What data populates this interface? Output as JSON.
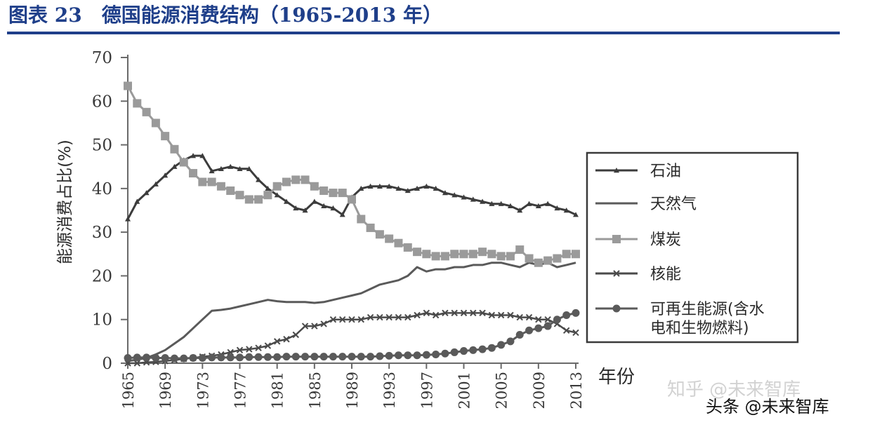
{
  "figure": {
    "title": "图表 23　德国能源消费结构（1965-2013 年）"
  },
  "watermark": {
    "faint": "知乎 @未来智库",
    "main": "头条 @未来智库"
  },
  "chart_data": {
    "type": "line",
    "ylabel": "能源消费占比(%)",
    "xlabel": "年份",
    "ylim": [
      0,
      70
    ],
    "yticks": [
      0,
      10,
      20,
      30,
      40,
      50,
      60,
      70
    ],
    "xlim": [
      1965,
      2013
    ],
    "xticks": [
      1965,
      1969,
      1973,
      1977,
      1981,
      1985,
      1989,
      1993,
      1997,
      2001,
      2005,
      2009,
      2013
    ],
    "grid": false,
    "legend_position": "right",
    "x": [
      1965,
      1966,
      1967,
      1968,
      1969,
      1970,
      1971,
      1972,
      1973,
      1974,
      1975,
      1976,
      1977,
      1978,
      1979,
      1980,
      1981,
      1982,
      1983,
      1984,
      1985,
      1986,
      1987,
      1988,
      1989,
      1990,
      1991,
      1992,
      1993,
      1994,
      1995,
      1996,
      1997,
      1998,
      1999,
      2000,
      2001,
      2002,
      2003,
      2004,
      2005,
      2006,
      2007,
      2008,
      2009,
      2010,
      2011,
      2012,
      2013
    ],
    "series": [
      {
        "name": "石油",
        "color": "#3c3c3c",
        "marker": "triangle",
        "values": [
          33,
          37,
          39,
          41,
          43,
          45,
          46.5,
          47.5,
          47.5,
          44,
          44.5,
          45,
          44.5,
          44.5,
          42,
          40,
          38.5,
          37,
          35.5,
          35,
          37,
          36,
          35.5,
          34,
          38,
          40,
          40.5,
          40.5,
          40.5,
          40,
          39.5,
          40,
          40.5,
          40,
          39,
          38.5,
          38,
          37.5,
          37,
          36.5,
          36.5,
          36,
          35,
          36.5,
          36,
          36.5,
          35.5,
          35,
          34
        ]
      },
      {
        "name": "天然气",
        "color": "#5a5a5a",
        "marker": "none",
        "values": [
          0.5,
          0.8,
          1.2,
          2,
          3,
          4.5,
          6,
          8,
          10,
          12,
          12.2,
          12.5,
          13,
          13.5,
          14,
          14.5,
          14.2,
          14,
          14,
          14,
          13.8,
          14,
          14.5,
          15,
          15.5,
          16,
          17,
          18,
          18.5,
          19,
          20,
          22,
          21,
          21.5,
          21.5,
          22,
          22,
          22.5,
          22.5,
          23,
          23,
          22.5,
          22,
          23,
          22.5,
          23,
          22,
          22.5,
          23
        ]
      },
      {
        "name": "煤炭",
        "color": "#9a9a9a",
        "marker": "square",
        "values": [
          63.5,
          59.5,
          57.5,
          55,
          52,
          49,
          46,
          43.5,
          41.5,
          41.5,
          40.5,
          39.5,
          38.5,
          37.5,
          37.5,
          38.5,
          40.5,
          41.5,
          42,
          42,
          40.5,
          39.5,
          39,
          39,
          37.5,
          33,
          31,
          29.5,
          28.5,
          27.5,
          26.5,
          25.5,
          25,
          24.5,
          24.5,
          25,
          25,
          25,
          25.5,
          25,
          24.5,
          24.5,
          26,
          24,
          23,
          23.5,
          24,
          25,
          25
        ]
      },
      {
        "name": "核能",
        "color": "#4a4a4a",
        "marker": "x",
        "values": [
          0,
          0,
          0.2,
          0.3,
          0.5,
          0.7,
          1,
          1.2,
          1.5,
          1.7,
          2,
          2.5,
          3,
          3.2,
          3.5,
          4,
          5,
          5.5,
          6.5,
          8.5,
          8.5,
          9,
          10,
          10,
          10,
          10,
          10.5,
          10.5,
          10.5,
          10.5,
          10.5,
          11,
          11.5,
          11,
          11.5,
          11.5,
          11.5,
          11.5,
          11.5,
          11,
          11,
          11,
          10.5,
          10.5,
          10,
          10,
          9,
          7.5,
          7
        ]
      },
      {
        "name": "可再生能源(含水电和生物燃料)",
        "color": "#5a5a5a",
        "marker": "circle",
        "values": [
          1.2,
          1.3,
          1.3,
          1.2,
          1.2,
          1.1,
          1.1,
          1.2,
          1.2,
          1.3,
          1.3,
          1.3,
          1.3,
          1.4,
          1.4,
          1.4,
          1.4,
          1.5,
          1.5,
          1.5,
          1.5,
          1.5,
          1.5,
          1.5,
          1.5,
          1.5,
          1.5,
          1.6,
          1.7,
          1.8,
          1.8,
          1.8,
          1.9,
          2,
          2.2,
          2.5,
          2.8,
          3,
          3.2,
          3.5,
          4.2,
          5,
          6.5,
          7.5,
          8,
          8.5,
          10,
          11,
          11.5
        ]
      }
    ],
    "legend": [
      {
        "label_lines": [
          "石油"
        ]
      },
      {
        "label_lines": [
          "天然气"
        ]
      },
      {
        "label_lines": [
          "煤炭"
        ]
      },
      {
        "label_lines": [
          "核能"
        ]
      },
      {
        "label_lines": [
          "可再生能源(含水",
          "电和生物燃料)"
        ]
      }
    ]
  }
}
